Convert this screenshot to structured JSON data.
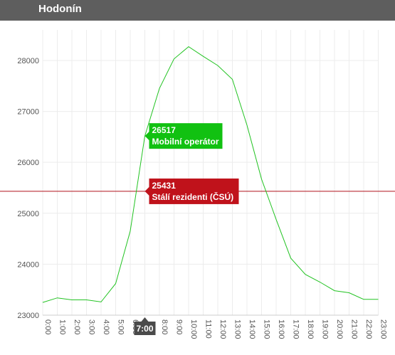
{
  "header": {
    "title": "Hodonín"
  },
  "colors": {
    "header_bg": "#5e5e5e",
    "mobile": "#22c322",
    "mobile_tip": "#11c111",
    "resident": "#b0121b",
    "resident_tip": "#c0121b",
    "grid": "#ececec",
    "cursor_bg": "#4a4a4a"
  },
  "chart_data": {
    "type": "line",
    "categories": [
      "0:00",
      "1:00",
      "2:00",
      "3:00",
      "4:00",
      "5:00",
      "6:00",
      "7:00",
      "8:00",
      "9:00",
      "10:00",
      "11:00",
      "12:00",
      "13:00",
      "14:00",
      "15:00",
      "16:00",
      "17:00",
      "18:00",
      "19:00",
      "20:00",
      "21:00",
      "22:00",
      "23:00"
    ],
    "series": [
      {
        "name": "Mobilní operátor",
        "values": [
          23250,
          23340,
          23300,
          23300,
          23260,
          23620,
          24650,
          26517,
          27450,
          28030,
          28270,
          28080,
          27900,
          27630,
          26730,
          25670,
          24880,
          24120,
          23800,
          23650,
          23480,
          23440,
          23310,
          23310
        ]
      },
      {
        "name": "Stálí rezidenti (ČSÚ)",
        "values": [
          25431,
          25431,
          25431,
          25431,
          25431,
          25431,
          25431,
          25431,
          25431,
          25431,
          25431,
          25431,
          25431,
          25431,
          25431,
          25431,
          25431,
          25431,
          25431,
          25431,
          25431,
          25431,
          25431,
          25431
        ]
      }
    ],
    "yticks": [
      23000,
      24000,
      25000,
      26000,
      27000,
      28000
    ],
    "ylim": [
      23000,
      28600
    ],
    "grid": true,
    "cursor": {
      "label": "7:00",
      "index": 7,
      "tooltips": [
        {
          "value": "26517",
          "name": "Mobilní operátor"
        },
        {
          "value": "25431",
          "name": "Stálí rezidenti (ČSÚ)"
        }
      ]
    }
  }
}
